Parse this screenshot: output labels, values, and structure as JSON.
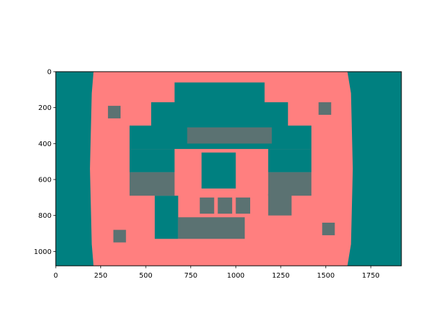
{
  "chart_data": {
    "type": "heatmap",
    "title": "",
    "xlabel": "",
    "ylabel": "",
    "xlim": [
      0,
      1920
    ],
    "ylim": [
      1080,
      0
    ],
    "y_inverted": true,
    "grid": false,
    "legend": "none",
    "x_ticks": [
      0,
      250,
      500,
      750,
      1000,
      1250,
      1500,
      1750
    ],
    "y_ticks": [
      0,
      200,
      400,
      600,
      800,
      1000
    ],
    "x_tick_labels": [
      "0",
      "250",
      "500",
      "750",
      "1000",
      "1250",
      "1500",
      "1750"
    ],
    "y_tick_labels": [
      "0",
      "200",
      "400",
      "600",
      "800",
      "1000"
    ],
    "colormap": {
      "low": "#008080",
      "high": "#ff7f7f",
      "mid": "#5b7272"
    },
    "image_description_regions": [
      {
        "kind": "background",
        "shade": "low",
        "x": [
          0,
          1920
        ],
        "y": [
          0,
          1080
        ]
      },
      {
        "kind": "chart-field",
        "shade": "high",
        "poly": [
          [
            210,
            0
          ],
          [
            1620,
            0
          ],
          [
            1640,
            120
          ],
          [
            1650,
            540
          ],
          [
            1640,
            960
          ],
          [
            1620,
            1080
          ],
          [
            210,
            1080
          ],
          [
            200,
            960
          ],
          [
            190,
            540
          ],
          [
            200,
            120
          ]
        ]
      },
      {
        "kind": "patch",
        "shade": "low",
        "x": [
          660,
          1160
        ],
        "y": [
          60,
          190
        ]
      },
      {
        "kind": "patch",
        "shade": "low",
        "x": [
          530,
          1290
        ],
        "y": [
          170,
          300
        ]
      },
      {
        "kind": "patch",
        "shade": "low",
        "x": [
          410,
          1420
        ],
        "y": [
          300,
          430
        ]
      },
      {
        "kind": "patch",
        "shade": "low",
        "x": [
          410,
          660
        ],
        "y": [
          430,
          560
        ]
      },
      {
        "kind": "patch",
        "shade": "mid",
        "x": [
          410,
          660
        ],
        "y": [
          560,
          690
        ]
      },
      {
        "kind": "patch",
        "shade": "low",
        "x": [
          1180,
          1420
        ],
        "y": [
          430,
          560
        ]
      },
      {
        "kind": "patch",
        "shade": "mid",
        "x": [
          1180,
          1420
        ],
        "y": [
          560,
          690
        ]
      },
      {
        "kind": "patch",
        "shade": "low",
        "x": [
          550,
          680
        ],
        "y": [
          690,
          930
        ]
      },
      {
        "kind": "patch",
        "shade": "mid",
        "x": [
          680,
          1050
        ],
        "y": [
          810,
          930
        ]
      },
      {
        "kind": "patch",
        "shade": "mid",
        "x": [
          1180,
          1310
        ],
        "y": [
          680,
          800
        ]
      },
      {
        "kind": "patch",
        "shade": "mid",
        "x": [
          730,
          1200
        ],
        "y": [
          310,
          400
        ]
      },
      {
        "kind": "patch",
        "shade": "low",
        "x": [
          810,
          1000
        ],
        "y": [
          450,
          650
        ]
      },
      {
        "kind": "patch",
        "shade": "mid",
        "x": [
          800,
          880
        ],
        "y": [
          700,
          790
        ]
      },
      {
        "kind": "patch",
        "shade": "mid",
        "x": [
          900,
          980
        ],
        "y": [
          700,
          790
        ]
      },
      {
        "kind": "patch",
        "shade": "mid",
        "x": [
          1000,
          1080
        ],
        "y": [
          700,
          790
        ]
      },
      {
        "kind": "marker",
        "shade": "mid",
        "x": [
          290,
          360
        ],
        "y": [
          190,
          260
        ]
      },
      {
        "kind": "marker",
        "shade": "mid",
        "x": [
          1460,
          1530
        ],
        "y": [
          170,
          240
        ]
      },
      {
        "kind": "marker",
        "shade": "mid",
        "x": [
          320,
          390
        ],
        "y": [
          880,
          950
        ]
      },
      {
        "kind": "marker",
        "shade": "mid",
        "x": [
          1480,
          1550
        ],
        "y": [
          840,
          910
        ]
      }
    ]
  }
}
